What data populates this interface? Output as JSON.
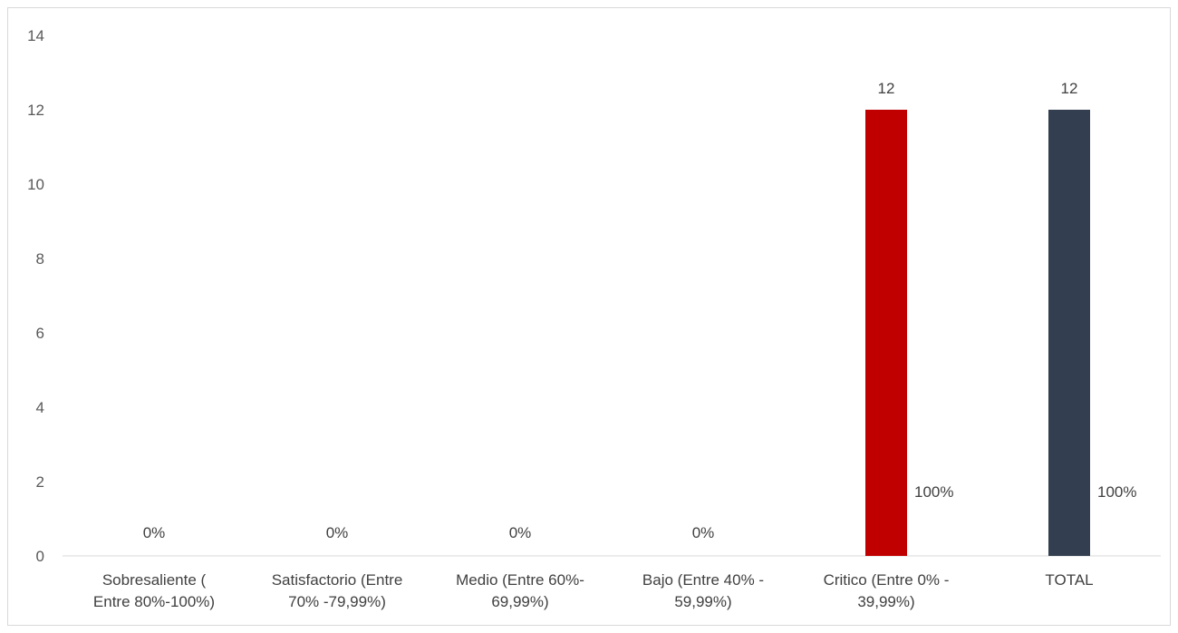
{
  "chart_data": {
    "type": "bar",
    "title": "",
    "xlabel": "",
    "ylabel": "",
    "ylim": [
      0,
      14
    ],
    "yticks": [
      0,
      2,
      4,
      6,
      8,
      10,
      12,
      14
    ],
    "grid": false,
    "legend": "none",
    "categories": [
      [
        "Sobresaliente (",
        "Entre 80%-100%)"
      ],
      [
        "Satisfactorio (Entre",
        "70% -79,99%)"
      ],
      [
        "Medio (Entre 60%-",
        "69,99%)"
      ],
      [
        "Bajo (Entre 40% -",
        "59,99%)"
      ],
      [
        "Critico (Entre 0% -",
        "39,99%)"
      ],
      [
        "TOTAL"
      ]
    ],
    "series": [
      {
        "values": [
          0,
          0,
          0,
          0,
          12,
          12
        ],
        "value_labels": [
          "",
          "",
          "",
          "",
          "12",
          "12"
        ],
        "percent_labels": [
          "0%",
          "0%",
          "0%",
          "0%",
          "100%",
          "100%"
        ],
        "colors": [
          "#c00000",
          "#c00000",
          "#c00000",
          "#c00000",
          "#c00000",
          "#333f50"
        ]
      }
    ]
  }
}
